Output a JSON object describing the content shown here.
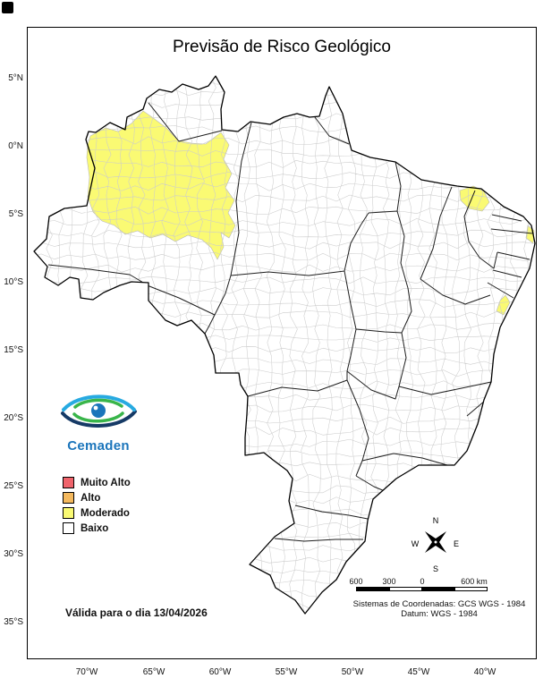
{
  "title": "Previsão de Risco Geológico",
  "validity_text": "Válida para o dia 13/04/2026",
  "logo_text": "Cemaden",
  "legend": {
    "items": [
      {
        "label": "Muito Alto",
        "color": "#f0646c"
      },
      {
        "label": "Alto",
        "color": "#f4b95e"
      },
      {
        "label": "Moderado",
        "color": "#fafa73"
      },
      {
        "label": "Baixo",
        "color": "#ffffff"
      }
    ]
  },
  "compass": {
    "n": "N",
    "s": "S",
    "e": "E",
    "w": "W"
  },
  "scalebar": {
    "labels": [
      "600",
      "300",
      "0",
      "600 km"
    ]
  },
  "coords_note": {
    "line1": "Sistemas de Coordenadas: GCS WGS - 1984",
    "line2": "Datum: WGS - 1984"
  },
  "axes": {
    "lat": [
      "5°N",
      "0°N",
      "5°S",
      "10°S",
      "15°S",
      "20°S",
      "25°S",
      "30°S",
      "35°S"
    ],
    "lon": [
      "70°W",
      "65°W",
      "60°W",
      "55°W",
      "50°W",
      "45°W",
      "40°W"
    ]
  },
  "map": {
    "country": "Brasil",
    "risk_regions": [
      {
        "name": "oeste-do-amazonas",
        "level": "Moderado"
      },
      {
        "name": "ceara",
        "level": "Moderado"
      },
      {
        "name": "litoral-paraiba-pernambuco",
        "level": "Moderado"
      },
      {
        "name": "litoral-alagoas-sergipe",
        "level": "Moderado"
      }
    ]
  },
  "colors": {
    "moderado_fill": "#fafa73",
    "country_border": "#000000",
    "state_border": "#1f1f1f",
    "municipality_border": "#cccccc",
    "logo_navy": "#163a66",
    "logo_blue": "#1b75bb",
    "logo_lightblue": "#27aae1",
    "logo_green": "#39b54a"
  }
}
